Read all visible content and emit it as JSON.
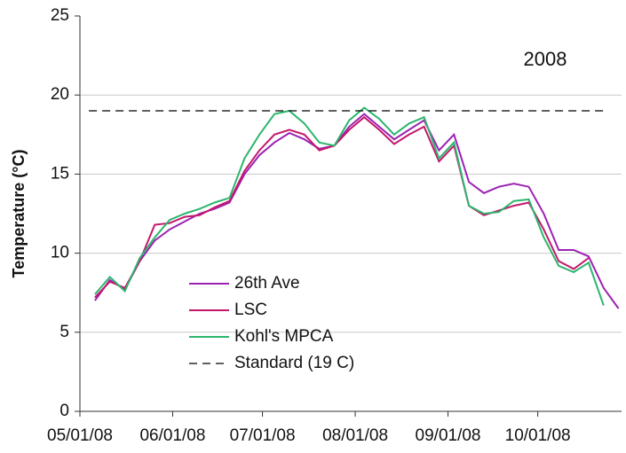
{
  "chart_data": {
    "type": "line",
    "annotation": "2008",
    "y_label": "Temperature (°C)",
    "x": [
      "2008-05-06",
      "2008-05-11",
      "2008-05-16",
      "2008-05-21",
      "2008-05-26",
      "2008-05-31",
      "2008-06-05",
      "2008-06-10",
      "2008-06-15",
      "2008-06-20",
      "2008-06-25",
      "2008-06-30",
      "2008-07-05",
      "2008-07-10",
      "2008-07-15",
      "2008-07-20",
      "2008-07-25",
      "2008-07-30",
      "2008-08-04",
      "2008-08-09",
      "2008-08-14",
      "2008-08-19",
      "2008-08-24",
      "2008-08-29",
      "2008-09-03",
      "2008-09-08",
      "2008-09-13",
      "2008-09-18",
      "2008-09-23",
      "2008-09-28",
      "2008-10-03",
      "2008-10-08",
      "2008-10-13",
      "2008-10-18",
      "2008-10-23",
      "2008-10-28"
    ],
    "series": [
      {
        "name": "26th Ave",
        "color": "#9b22b3",
        "values": [
          7.0,
          8.3,
          7.7,
          9.5,
          10.8,
          11.5,
          12.0,
          12.5,
          12.8,
          13.2,
          15.0,
          16.2,
          17.0,
          17.6,
          17.2,
          16.6,
          16.8,
          18.0,
          18.8,
          18.0,
          17.2,
          17.8,
          18.4,
          16.5,
          17.5,
          14.5,
          13.8,
          14.2,
          14.4,
          14.2,
          12.5,
          10.2,
          10.2,
          9.8,
          7.8,
          6.5
        ]
      },
      {
        "name": "LSC",
        "color": "#c4176b",
        "values": [
          7.2,
          8.2,
          7.8,
          9.5,
          11.8,
          11.9,
          12.3,
          12.4,
          12.9,
          13.3,
          15.2,
          16.5,
          17.5,
          17.8,
          17.5,
          16.5,
          16.8,
          17.8,
          18.6,
          17.8,
          16.9,
          17.5,
          18.0,
          15.8,
          16.8,
          13.0,
          12.4,
          12.7,
          13.0,
          13.2,
          11.5,
          9.5,
          9.0,
          9.7,
          null,
          null
        ]
      },
      {
        "name": "Kohl's MPCA",
        "color": "#2db56e",
        "values": [
          7.4,
          8.5,
          7.6,
          9.7,
          11.0,
          12.1,
          12.5,
          12.8,
          13.2,
          13.5,
          16.0,
          17.5,
          18.8,
          19.0,
          18.2,
          17.0,
          16.8,
          18.4,
          19.2,
          18.5,
          17.5,
          18.2,
          18.6,
          16.0,
          17.0,
          13.0,
          12.5,
          12.6,
          13.3,
          13.4,
          11.0,
          9.2,
          8.8,
          9.4,
          6.7,
          null
        ]
      },
      {
        "name": "Standard (19 C)",
        "color": "#000000",
        "dashed": true,
        "x": [
          "2008-05-04",
          "2008-10-24"
        ],
        "values": [
          19,
          19
        ]
      }
    ],
    "xlim": [
      "2008-05-01",
      "2008-10-29"
    ],
    "xticks": [
      {
        "value": "2008-05-01",
        "label": "05/01/08"
      },
      {
        "value": "2008-06-01",
        "label": "06/01/08"
      },
      {
        "value": "2008-07-01",
        "label": "07/01/08"
      },
      {
        "value": "2008-08-01",
        "label": "08/01/08"
      },
      {
        "value": "2008-09-01",
        "label": "09/01/08"
      },
      {
        "value": "2008-10-01",
        "label": "10/01/08"
      }
    ],
    "ylim": [
      0,
      25
    ],
    "yticks": [
      0,
      5,
      10,
      15,
      20,
      25
    ],
    "grid": true
  }
}
